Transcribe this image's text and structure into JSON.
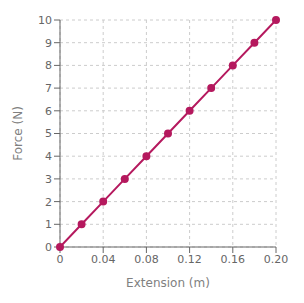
{
  "chart_data": {
    "type": "line",
    "xlabel": "Extension (m)",
    "ylabel": "Force (N)",
    "x": [
      0.0,
      0.02,
      0.04,
      0.06,
      0.08,
      0.1,
      0.12,
      0.14,
      0.16,
      0.18,
      0.2
    ],
    "values": [
      0.0,
      1.0,
      2.0,
      3.0,
      4.0,
      5.0,
      6.0,
      7.0,
      8.0,
      9.0,
      10.0
    ],
    "color": "#B5195E",
    "marker": "circle",
    "xlim": [
      0,
      0.2
    ],
    "ylim": [
      0,
      10
    ],
    "xticks": [
      0,
      0.04,
      0.08,
      0.12,
      0.16,
      {
        "value": 0.2,
        "label": "0.20"
      }
    ],
    "yticks": [
      0,
      1,
      2,
      3,
      4,
      5,
      6,
      7,
      8,
      9,
      10
    ],
    "grid": true
  }
}
